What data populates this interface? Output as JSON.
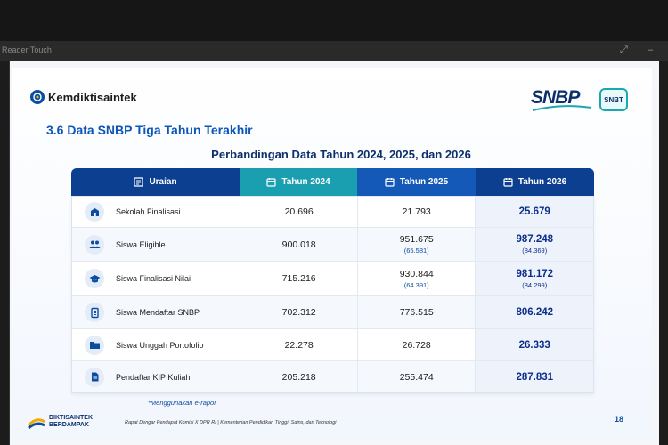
{
  "window": {
    "title": "Reader Touch",
    "expand_icon": "expand-icon",
    "minimize_icon": "minimize-icon"
  },
  "slide": {
    "logo_text": "Kemdiktisaintek",
    "brand_snbp": "SNBP",
    "brand_snbt": "SNBT",
    "section_title": "3.6 Data SNBP Tiga Tahun Terakhir",
    "subtitle": "Perbandingan Data Tahun 2024, 2025, dan 2026",
    "table": {
      "headers": [
        "Uraian",
        "Tahun 2024",
        "Tahun 2025",
        "Tahun 2026"
      ],
      "rows": [
        {
          "label": "Sekolah Finalisasi",
          "icon": "school-icon",
          "v2024": "20.696",
          "v2025": "21.793",
          "v2025_note": "",
          "v2026": "25.679",
          "v2026_note": ""
        },
        {
          "label": "Siswa Eligible",
          "icon": "students-icon",
          "v2024": "900.018",
          "v2025": "951.675",
          "v2025_note": "(65.581)",
          "v2026": "987.248",
          "v2026_note": "(84.369)"
        },
        {
          "label": "Siswa Finalisasi Nilai",
          "icon": "graduation-cap-icon",
          "v2024": "715.216",
          "v2025": "930.844",
          "v2025_note": "(64.391)",
          "v2026": "981.172",
          "v2026_note": "(84.299)"
        },
        {
          "label": "Siswa Mendaftar SNBP",
          "icon": "registration-icon",
          "v2024": "702.312",
          "v2025": "776.515",
          "v2025_note": "",
          "v2026": "806.242",
          "v2026_note": ""
        },
        {
          "label": "Siswa Unggah Portofolio",
          "icon": "folder-icon",
          "v2024": "22.278",
          "v2025": "26.728",
          "v2025_note": "",
          "v2026": "26.333",
          "v2026_note": ""
        },
        {
          "label": "Pendaftar KIP Kuliah",
          "icon": "document-icon",
          "v2024": "205.218",
          "v2025": "255.474",
          "v2025_note": "",
          "v2026": "287.831",
          "v2026_note": ""
        }
      ]
    },
    "footnote": "*Menggunakan e-rapor",
    "footer": {
      "logo_line1": "DIKTISAINTEK",
      "logo_line2": "BERDAMPAK",
      "text": "Rapat Dengar Pendapat Komisi X DPR RI  |  Kementerian Pendidikan Tinggi, Sains, dan Teknologi",
      "page_number": "18"
    }
  }
}
